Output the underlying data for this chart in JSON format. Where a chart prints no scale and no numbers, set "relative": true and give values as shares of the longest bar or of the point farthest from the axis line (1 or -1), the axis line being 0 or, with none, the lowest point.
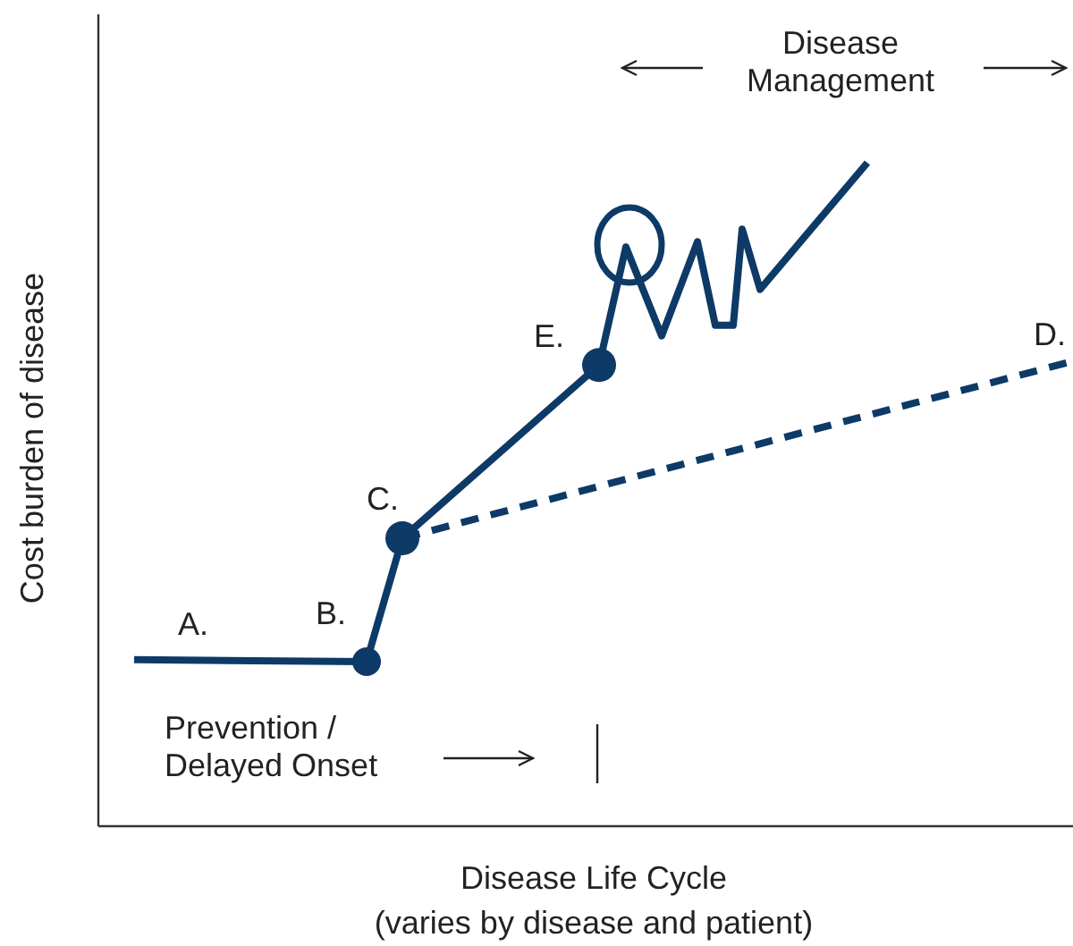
{
  "chart_data": {
    "type": "line",
    "relative": true,
    "xlabel": "Disease Life Cycle\n(varies by disease and patient)",
    "ylabel": "Cost burden of disease",
    "categories": [
      null,
      null,
      null,
      null,
      null,
      null,
      null,
      null,
      null,
      null,
      null,
      null,
      null,
      null,
      null,
      null,
      null,
      null,
      null,
      null,
      null,
      null,
      null,
      null,
      null,
      null,
      null,
      null,
      null,
      null,
      null,
      null,
      null,
      null,
      null,
      null,
      null,
      null,
      null,
      null,
      null,
      null,
      null,
      null,
      null,
      null,
      null,
      null,
      null,
      null,
      null,
      null,
      null,
      null,
      null,
      null,
      null,
      null,
      null,
      null,
      null,
      null,
      null,
      null,
      null,
      null,
      null,
      null,
      null,
      null,
      null,
      null,
      null,
      null,
      null,
      null,
      null,
      null,
      null,
      null,
      null,
      null,
      null,
      null,
      null,
      null,
      null,
      null,
      null,
      null,
      null,
      null,
      null,
      null,
      null,
      null,
      null,
      null,
      null,
      null,
      null,
      null,
      null,
      null,
      null,
      null
    ],
    "series": [
      {
        "color": "#0d3a66",
        "line_style": "solid",
        "values": [
          0.251,
          null,
          null,
          null,
          null,
          null,
          null,
          null,
          null,
          null,
          null,
          null,
          null,
          null,
          null,
          null,
          null,
          null,
          null,
          null,
          null,
          null,
          null,
          null,
          null,
          null,
          0.248,
          null,
          null,
          null,
          0.434,
          null,
          null,
          null,
          null,
          null,
          null,
          null,
          null,
          null,
          null,
          null,
          null,
          null,
          null,
          null,
          null,
          null,
          null,
          null,
          null,
          null,
          0.695,
          null,
          null,
          0.873,
          null,
          null,
          null,
          0.739,
          null,
          null,
          null,
          0.881,
          null,
          0.755,
          null,
          0.755,
          0.9,
          null,
          0.809,
          null,
          null,
          null,
          null,
          null,
          null,
          null,
          null,
          null,
          null,
          null,
          1,
          null,
          null,
          null,
          null,
          null,
          null,
          null,
          null,
          null,
          null,
          null,
          null,
          null,
          null,
          null,
          null,
          null,
          null,
          null,
          null,
          null,
          null,
          null
        ]
      },
      {
        "color": "#0d3a66",
        "line_style": "dashed",
        "values": [
          null,
          null,
          null,
          null,
          null,
          null,
          null,
          null,
          null,
          null,
          null,
          null,
          null,
          null,
          null,
          null,
          null,
          null,
          null,
          null,
          null,
          null,
          null,
          null,
          null,
          null,
          null,
          null,
          null,
          null,
          0.434,
          null,
          null,
          null,
          null,
          null,
          null,
          null,
          null,
          null,
          null,
          null,
          null,
          null,
          null,
          null,
          null,
          null,
          null,
          null,
          null,
          null,
          null,
          null,
          null,
          null,
          null,
          null,
          null,
          null,
          null,
          null,
          null,
          null,
          null,
          null,
          null,
          null,
          null,
          null,
          null,
          null,
          null,
          null,
          null,
          null,
          null,
          null,
          null,
          null,
          null,
          null,
          null,
          null,
          null,
          null,
          null,
          null,
          null,
          null,
          null,
          null,
          null,
          null,
          null,
          null,
          null,
          null,
          null,
          null,
          null,
          null,
          null,
          null,
          null,
          0.701
        ]
      }
    ],
    "annotations": [
      "A.",
      "B.",
      "C.",
      "E.",
      "D.",
      "Disease\nManagement",
      "Prevention /\nDelayed Onset"
    ]
  }
}
